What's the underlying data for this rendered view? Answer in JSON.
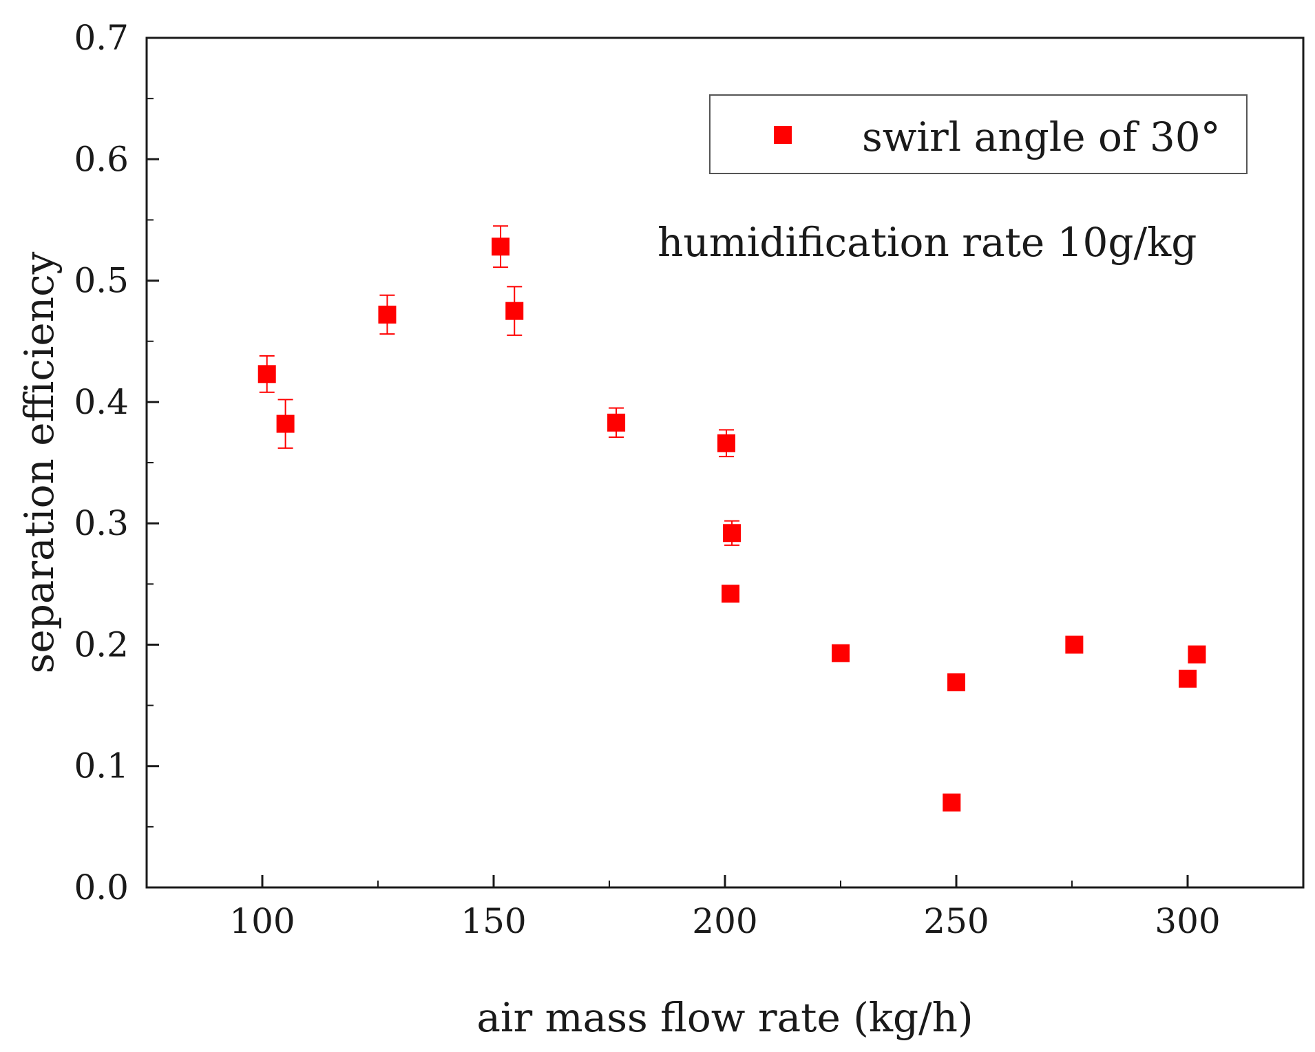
{
  "chart_data": {
    "type": "scatter",
    "title": "",
    "xlabel": "air mass flow rate (kg/h)",
    "ylabel": "separation efficiency",
    "xlim": [
      75,
      325
    ],
    "ylim": [
      0.0,
      0.7
    ],
    "xticks": [
      100,
      150,
      200,
      250,
      300
    ],
    "xtick_labels": [
      "100",
      "150",
      "200",
      "250",
      "300"
    ],
    "yticks": [
      0.0,
      0.1,
      0.2,
      0.3,
      0.4,
      0.5,
      0.6,
      0.7
    ],
    "ytick_labels": [
      "0.0",
      "0.1",
      "0.2",
      "0.3",
      "0.4",
      "0.5",
      "0.6",
      "0.7"
    ],
    "grid": false,
    "legend_position": "top-right",
    "annotations": [
      "humidification rate 10g/kg"
    ],
    "colors": {
      "series": "#ff0000",
      "axis": "#1a1a1a"
    },
    "series": [
      {
        "name": "swirl angle of 30°",
        "marker": "square",
        "points": [
          {
            "x": 101,
            "y": 0.423,
            "err": 0.015
          },
          {
            "x": 105,
            "y": 0.382,
            "err": 0.02
          },
          {
            "x": 127,
            "y": 0.472,
            "err": 0.016
          },
          {
            "x": 151.5,
            "y": 0.528,
            "err": 0.017
          },
          {
            "x": 154.5,
            "y": 0.475,
            "err": 0.02
          },
          {
            "x": 176.5,
            "y": 0.383,
            "err": 0.012
          },
          {
            "x": 200.3,
            "y": 0.366,
            "err": 0.011
          },
          {
            "x": 201.5,
            "y": 0.292,
            "err": 0.01
          },
          {
            "x": 201.2,
            "y": 0.242,
            "err": 0
          },
          {
            "x": 225,
            "y": 0.193,
            "err": 0
          },
          {
            "x": 249,
            "y": 0.07,
            "err": 0
          },
          {
            "x": 250,
            "y": 0.169,
            "err": 0
          },
          {
            "x": 275.5,
            "y": 0.2,
            "err": 0
          },
          {
            "x": 300,
            "y": 0.172,
            "err": 0
          },
          {
            "x": 302,
            "y": 0.192,
            "err": 0
          }
        ]
      }
    ]
  }
}
